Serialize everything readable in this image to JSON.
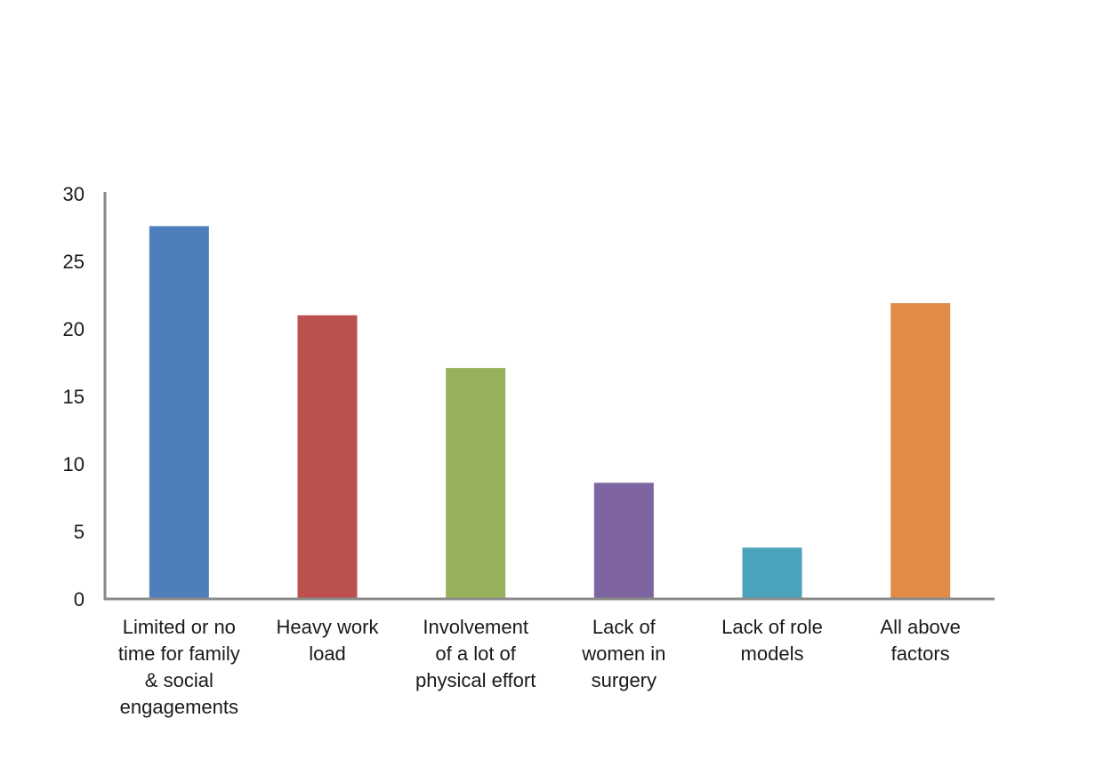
{
  "chart_data": {
    "type": "bar",
    "categories": [
      [
        "Limited or no",
        "time for family",
        "& social",
        "engagements"
      ],
      [
        "Heavy work",
        "load"
      ],
      [
        "Involvement",
        "of a lot of",
        "physical effort"
      ],
      [
        "Lack of",
        "women in",
        "surgery"
      ],
      [
        "Lack of role",
        "models"
      ],
      [
        "All above",
        "factors"
      ]
    ],
    "values": [
      27.6,
      21.0,
      17.1,
      8.6,
      3.8,
      21.9
    ],
    "colors": [
      "#4f7fba",
      "#bb504e",
      "#97b15b",
      "#7e64a0",
      "#4aa3bb",
      "#e38c47"
    ],
    "yticks": [
      0,
      5,
      10,
      15,
      20,
      25,
      30
    ],
    "ylim": [
      0,
      30
    ],
    "title": "",
    "xlabel": "",
    "ylabel": "",
    "grid": false,
    "legend": "none",
    "axis_color": "#8a8a8a"
  }
}
